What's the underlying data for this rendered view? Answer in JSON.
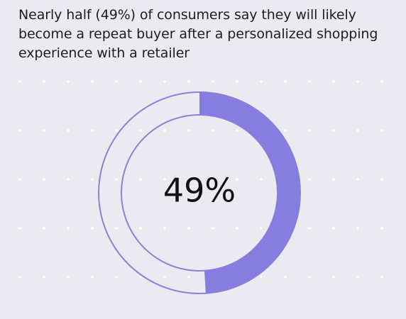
{
  "chart_data": {
    "type": "pie",
    "title": "Nearly half (49%) of consumers say they will likely become a repeat buyer after a personalized shopping experience with a retailer",
    "values": [
      49,
      51
    ],
    "center_label": "49%",
    "colors": {
      "filled": "#877ddf",
      "outline": "#8a80dc",
      "background": "#eceaf1"
    }
  }
}
